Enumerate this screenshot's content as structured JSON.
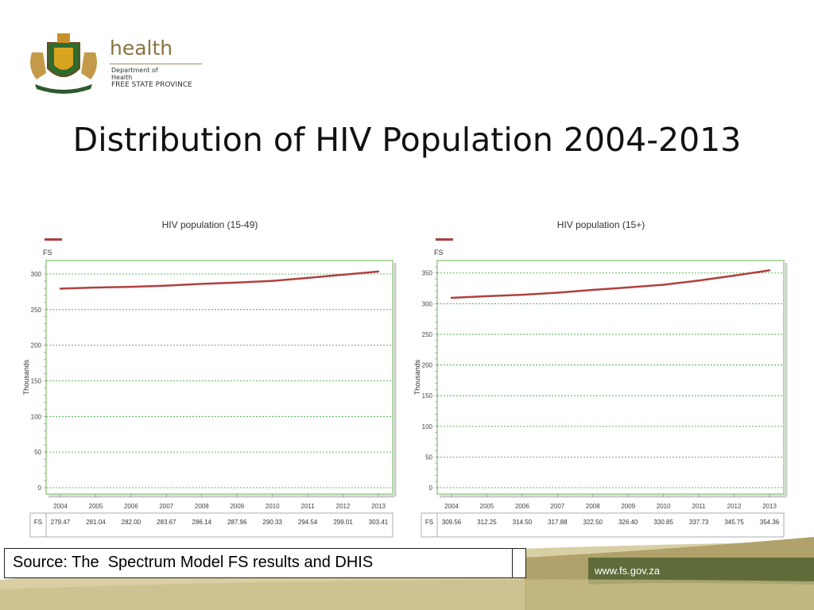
{
  "logo": {
    "word": "health",
    "line1": "Department of",
    "line2": "Health",
    "line3": "FREE STATE PROVINCE"
  },
  "slide": {
    "title": "Distribution of HIV Population 2004-2013",
    "source": "Source: The  Spectrum Model FS results and DHIS",
    "website": "www.fs.gov.za"
  },
  "colors": {
    "line": "#b04040",
    "grid": "#2fa32f",
    "frame": "#9acb8a",
    "footer_band": "#5f6c3a"
  },
  "chart_data": [
    {
      "type": "line",
      "title": "HIV population (15-49)",
      "legend_marker_color": "#b04040",
      "area_label": "FS",
      "ylabel": "Thousands",
      "ylim": [
        0,
        310
      ],
      "yticks": [
        0,
        50,
        100,
        150,
        200,
        250,
        300
      ],
      "grid": true,
      "x": [
        "2004",
        "2005",
        "2006",
        "2007",
        "2008",
        "2009",
        "2010",
        "2011",
        "2012",
        "2013"
      ],
      "series": [
        {
          "name": "FS",
          "values": [
            279.47,
            281.04,
            282.0,
            283.67,
            286.14,
            287.96,
            290.33,
            294.54,
            299.01,
            303.41
          ]
        }
      ],
      "table_row_label": "FS",
      "table_values": [
        "279.47",
        "281.04",
        "282.00",
        "283.67",
        "286.14",
        "287.96",
        "290.33",
        "294.54",
        "299.01",
        "303.41"
      ]
    },
    {
      "type": "line",
      "title": "HIV population (15+)",
      "legend_marker_color": "#b04040",
      "area_label": "FS",
      "ylabel": "Thousands",
      "ylim": [
        0,
        360
      ],
      "yticks": [
        0,
        50,
        100,
        150,
        200,
        250,
        300,
        350
      ],
      "grid": true,
      "x": [
        "2004",
        "2005",
        "2006",
        "2007",
        "2008",
        "2009",
        "2010",
        "2011",
        "2012",
        "2013"
      ],
      "series": [
        {
          "name": "FS",
          "values": [
            309.56,
            312.25,
            314.5,
            317.88,
            322.5,
            326.4,
            330.85,
            337.73,
            345.75,
            354.36
          ]
        }
      ],
      "table_row_label": "FS",
      "table_values": [
        "309.56",
        "312.25",
        "314.50",
        "317.88",
        "322.50",
        "326.40",
        "330.85",
        "337.73",
        "345.75",
        "354.36"
      ]
    }
  ]
}
